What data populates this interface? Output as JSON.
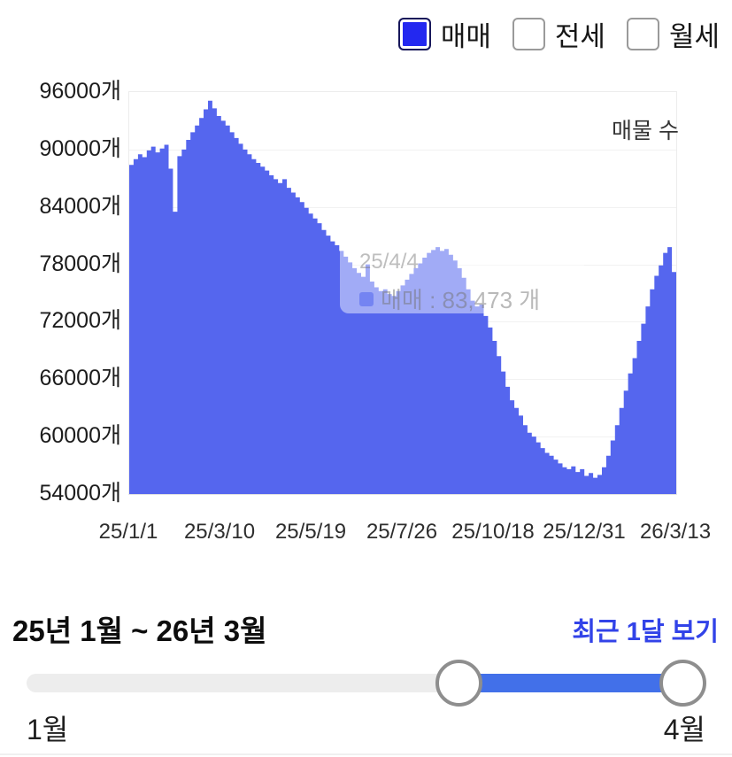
{
  "legend": {
    "items": [
      {
        "label": "매매",
        "checked": true
      },
      {
        "label": "전세",
        "checked": false
      },
      {
        "label": "월세",
        "checked": false
      }
    ]
  },
  "chart": {
    "series_label": "매물 수",
    "tooltip": {
      "date": "25/4/4",
      "series": "매매",
      "text": "매매 : 83,473 개"
    }
  },
  "chart_data": {
    "type": "area",
    "title": "매물 수",
    "ylim": [
      54000,
      96000
    ],
    "y_tick_step": 6000,
    "y_tick_labels": [
      "96000개",
      "90000개",
      "84000개",
      "78000개",
      "72000개",
      "66000개",
      "60000개",
      "54000개"
    ],
    "x_tick_labels": [
      "25/1/1",
      "25/3/10",
      "25/5/19",
      "25/7/26",
      "25/10/18",
      "25/12/31",
      "26/3/13"
    ],
    "grid": true,
    "legend_position": "top-right",
    "area_color": "#5566ee",
    "series": [
      {
        "name": "매매",
        "values": [
          88400,
          89000,
          89500,
          89200,
          89900,
          90300,
          89700,
          90100,
          90500,
          88000,
          83500,
          89300,
          90000,
          91000,
          91800,
          92500,
          93300,
          94200,
          95100,
          94300,
          93500,
          93000,
          92500,
          91800,
          91200,
          90600,
          90000,
          89500,
          89000,
          88600,
          88200,
          87800,
          87300,
          86900,
          86500,
          86900,
          86000,
          85500,
          85000,
          84500,
          83900,
          83300,
          82800,
          82300,
          81600,
          81000,
          80400,
          80000,
          79400,
          78800,
          78200,
          77600,
          77100,
          76700,
          78000,
          76200,
          75600,
          75200,
          75400,
          74900,
          74700,
          75200,
          75800,
          76400,
          77000,
          77600,
          78100,
          78700,
          79200,
          79500,
          79800,
          79400,
          79600,
          79000,
          78400,
          77600,
          76600,
          75400,
          74200,
          73600,
          73800,
          72600,
          71400,
          70000,
          68400,
          66800,
          65200,
          63800,
          63000,
          62200,
          61200,
          60400,
          60000,
          59400,
          58800,
          58300,
          58000,
          57600,
          57200,
          56800,
          56600,
          56900,
          56300,
          56600,
          55900,
          56200,
          55700,
          56000,
          56800,
          58000,
          59600,
          61200,
          63000,
          64800,
          66600,
          68200,
          70000,
          71800,
          73600,
          75400,
          76800,
          77900,
          79200,
          79800,
          77200
        ]
      }
    ]
  },
  "controls": {
    "range_label": "25년 1월 ~ 26년 3월",
    "recent_link": "최근 1달 보기",
    "slider": {
      "min_label": "1월",
      "max_label": "4월"
    }
  }
}
